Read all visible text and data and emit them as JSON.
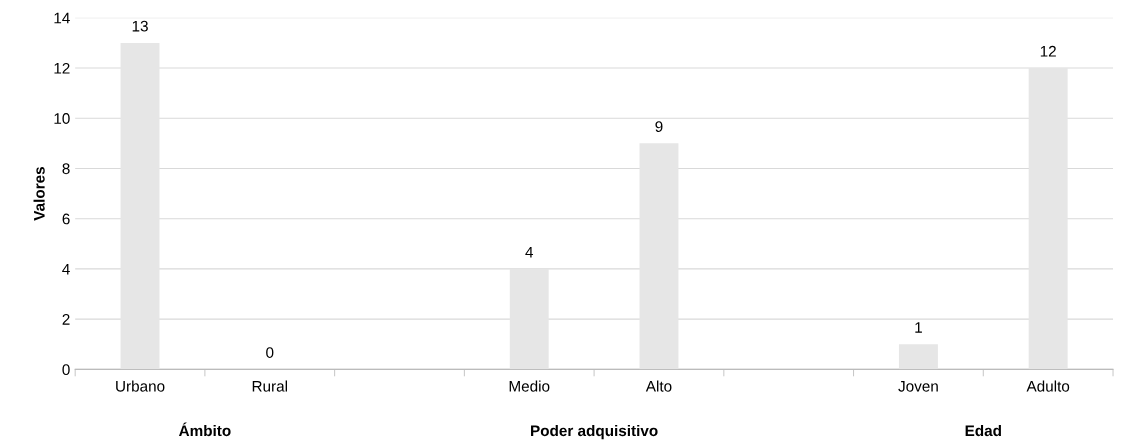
{
  "chart_data": {
    "type": "bar",
    "ylabel": "Valores",
    "categories": [
      "Urbano",
      "Rural",
      null,
      "Medio",
      "Alto",
      null,
      "Joven",
      "Adulto"
    ],
    "values": [
      13,
      0,
      null,
      4,
      9,
      null,
      1,
      12
    ],
    "color": "#e6e6e6",
    "ylim": [
      0,
      14
    ],
    "yticks": [
      0,
      2,
      4,
      6,
      8,
      10,
      12,
      14
    ],
    "grid": "y",
    "data_labels": true,
    "annotations": [
      "Ámbito",
      "Poder adquisitivo",
      "Edad"
    ]
  }
}
